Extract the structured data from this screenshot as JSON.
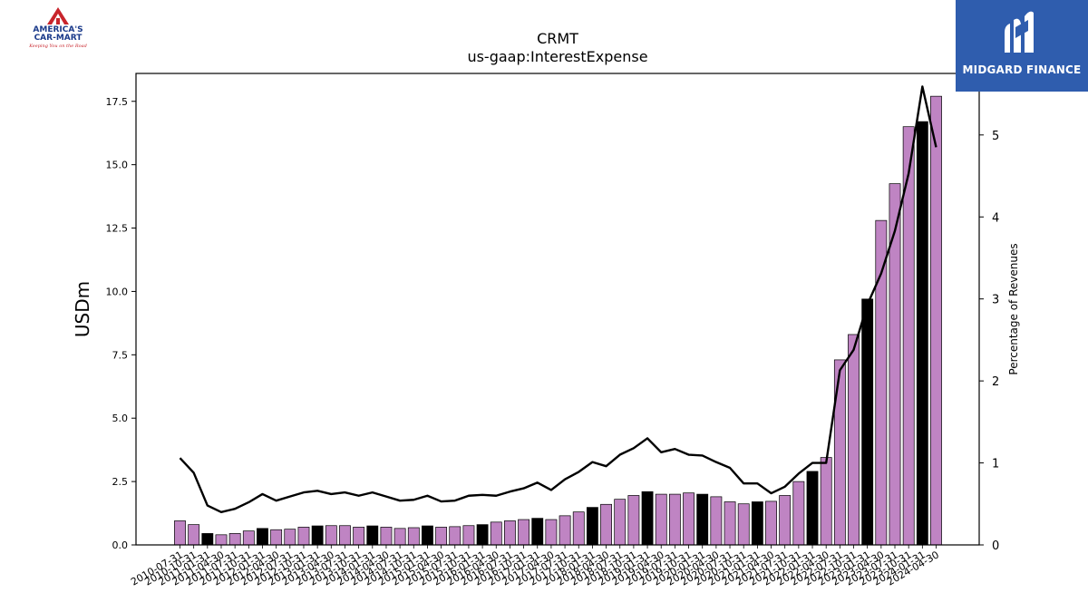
{
  "chart_data": {
    "type": "bar",
    "title": "CRMT",
    "subtitle": "us-gaap:InterestExpense",
    "ylabel": "USDm",
    "y2label": "Percentage of Revenues",
    "ylim": [
      0,
      18.6
    ],
    "y2lim": [
      0,
      5.75
    ],
    "yticks": [
      "0.0",
      "2.5",
      "5.0",
      "7.5",
      "10.0",
      "12.5",
      "15.0",
      "17.5"
    ],
    "y2ticks": [
      "0",
      "1",
      "2",
      "3",
      "4",
      "5"
    ],
    "categories": [
      "2010-07-31",
      "2010-10-31",
      "2011-01-31",
      "2011-04-30",
      "2011-07-31",
      "2011-10-31",
      "2012-01-31",
      "2012-04-30",
      "2012-07-31",
      "2012-10-31",
      "2013-01-31",
      "2013-04-30",
      "2013-07-31",
      "2013-10-31",
      "2014-01-31",
      "2014-04-30",
      "2014-07-31",
      "2014-10-31",
      "2015-01-31",
      "2015-04-30",
      "2015-07-31",
      "2015-10-31",
      "2016-01-31",
      "2016-04-30",
      "2016-07-31",
      "2016-10-31",
      "2017-01-31",
      "2017-04-30",
      "2017-07-31",
      "2017-10-31",
      "2018-01-31",
      "2018-04-30",
      "2018-07-31",
      "2018-10-31",
      "2019-01-31",
      "2019-04-30",
      "2019-07-31",
      "2019-10-31",
      "2020-01-31",
      "2020-04-30",
      "2020-07-31",
      "2020-10-31",
      "2021-01-31",
      "2021-04-30",
      "2021-07-31",
      "2021-10-31",
      "2022-01-31",
      "2022-04-30",
      "2022-07-31",
      "2022-10-31",
      "2023-01-31",
      "2023-04-30",
      "2023-07-31",
      "2023-10-31",
      "2024-01-31",
      "2024-04-30"
    ],
    "series": [
      {
        "type": "bar",
        "values": [
          0.95,
          0.8,
          0.45,
          0.4,
          0.45,
          0.55,
          0.65,
          0.6,
          0.62,
          0.7,
          0.75,
          0.76,
          0.76,
          0.7,
          0.75,
          0.7,
          0.65,
          0.68,
          0.75,
          0.7,
          0.72,
          0.76,
          0.8,
          0.9,
          0.95,
          1.0,
          1.05,
          1.0,
          1.15,
          1.3,
          1.48,
          1.6,
          1.8,
          1.95,
          2.1,
          2.0,
          2.0,
          2.05,
          2.0,
          1.9,
          1.7,
          1.62,
          1.7,
          1.72,
          1.95,
          2.5,
          2.9,
          3.45,
          7.3,
          8.3,
          9.7,
          12.8,
          14.25,
          16.5,
          16.7,
          17.7
        ],
        "highlight": [
          2,
          6,
          10,
          14,
          18,
          22,
          26,
          30,
          34,
          38,
          42,
          46,
          50,
          54
        ],
        "color": "#bf84c3",
        "highlight_color": "#000000",
        "edge_color": "#000000"
      },
      {
        "type": "line",
        "axis": "right",
        "values": [
          1.06,
          0.88,
          0.48,
          0.4,
          0.44,
          0.52,
          0.62,
          0.54,
          0.59,
          0.64,
          0.66,
          0.62,
          0.64,
          0.6,
          0.64,
          0.59,
          0.54,
          0.55,
          0.6,
          0.53,
          0.54,
          0.6,
          0.61,
          0.6,
          0.65,
          0.69,
          0.76,
          0.67,
          0.8,
          0.89,
          1.01,
          0.96,
          1.1,
          1.18,
          1.3,
          1.13,
          1.17,
          1.1,
          1.09,
          1.01,
          0.94,
          0.75,
          0.75,
          0.63,
          0.71,
          0.87,
          1.0,
          1.0,
          2.13,
          2.38,
          2.93,
          3.31,
          3.83,
          4.53,
          5.59,
          4.85
        ],
        "color": "#000000"
      }
    ]
  },
  "logos": {
    "left": {
      "line1": "AMERICA'S",
      "line2": "CAR-MART",
      "tagline": "Keeping You on the Road"
    },
    "right": {
      "text": "MIDGARD FINANCE"
    }
  },
  "colors": {
    "bar": "#bf84c3",
    "bar_highlight": "#000000",
    "line": "#000000",
    "logo_right_bg": "#2f5dae",
    "logo_left_red": "#c8252c",
    "logo_left_blue": "#1a3a8a"
  }
}
